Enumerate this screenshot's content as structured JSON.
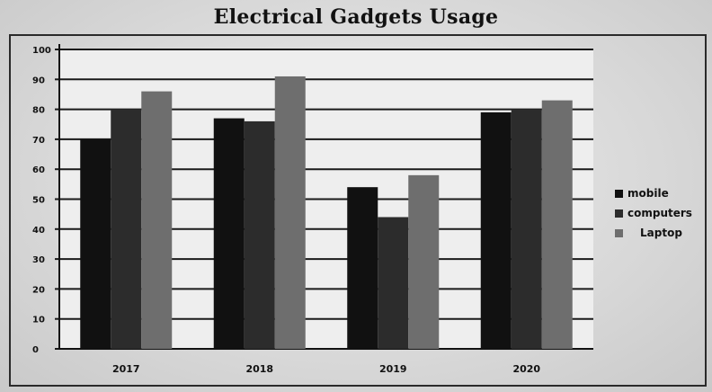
{
  "chart_data": {
    "type": "bar",
    "title": "Electrical Gadgets Usage",
    "categories": [
      "2017",
      "2018",
      "2019",
      "2020"
    ],
    "series": [
      {
        "name": "mobile",
        "values": [
          70,
          77,
          54,
          79
        ]
      },
      {
        "name": "computers",
        "values": [
          80,
          76,
          44,
          80
        ]
      },
      {
        "name": "Laptop",
        "values": [
          86,
          91,
          58,
          83
        ]
      }
    ],
    "xlabel": "",
    "ylabel": "",
    "ylim": [
      0,
      100
    ],
    "yticks": [
      "0",
      "10",
      "20",
      "30",
      "40",
      "50",
      "60",
      "70",
      "80",
      "90",
      "100"
    ],
    "grid": true,
    "legend_position": "right",
    "colors": [
      "#111111",
      "#2c2c2c",
      "#6e6e6e"
    ]
  }
}
